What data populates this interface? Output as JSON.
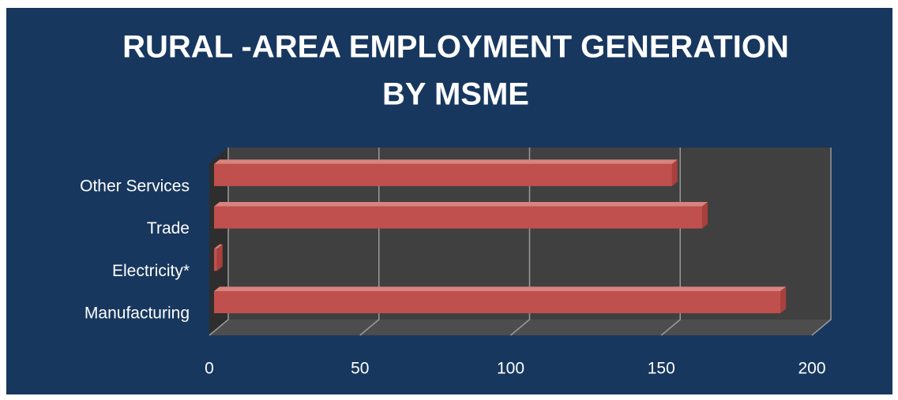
{
  "chart_data": {
    "type": "bar3d_horizontal",
    "title": [
      "RURAL -AREA EMPLOYMENT GENERATION",
      "BY MSME"
    ],
    "categories": [
      "Manufacturing",
      "Electricity*",
      "Trade",
      "Other Services"
    ],
    "values": [
      188,
      1,
      162,
      152
    ],
    "color": "#c0504d",
    "xlim": [
      0,
      200
    ],
    "xticks": [
      0,
      50,
      100,
      150,
      200
    ],
    "grid": true
  }
}
